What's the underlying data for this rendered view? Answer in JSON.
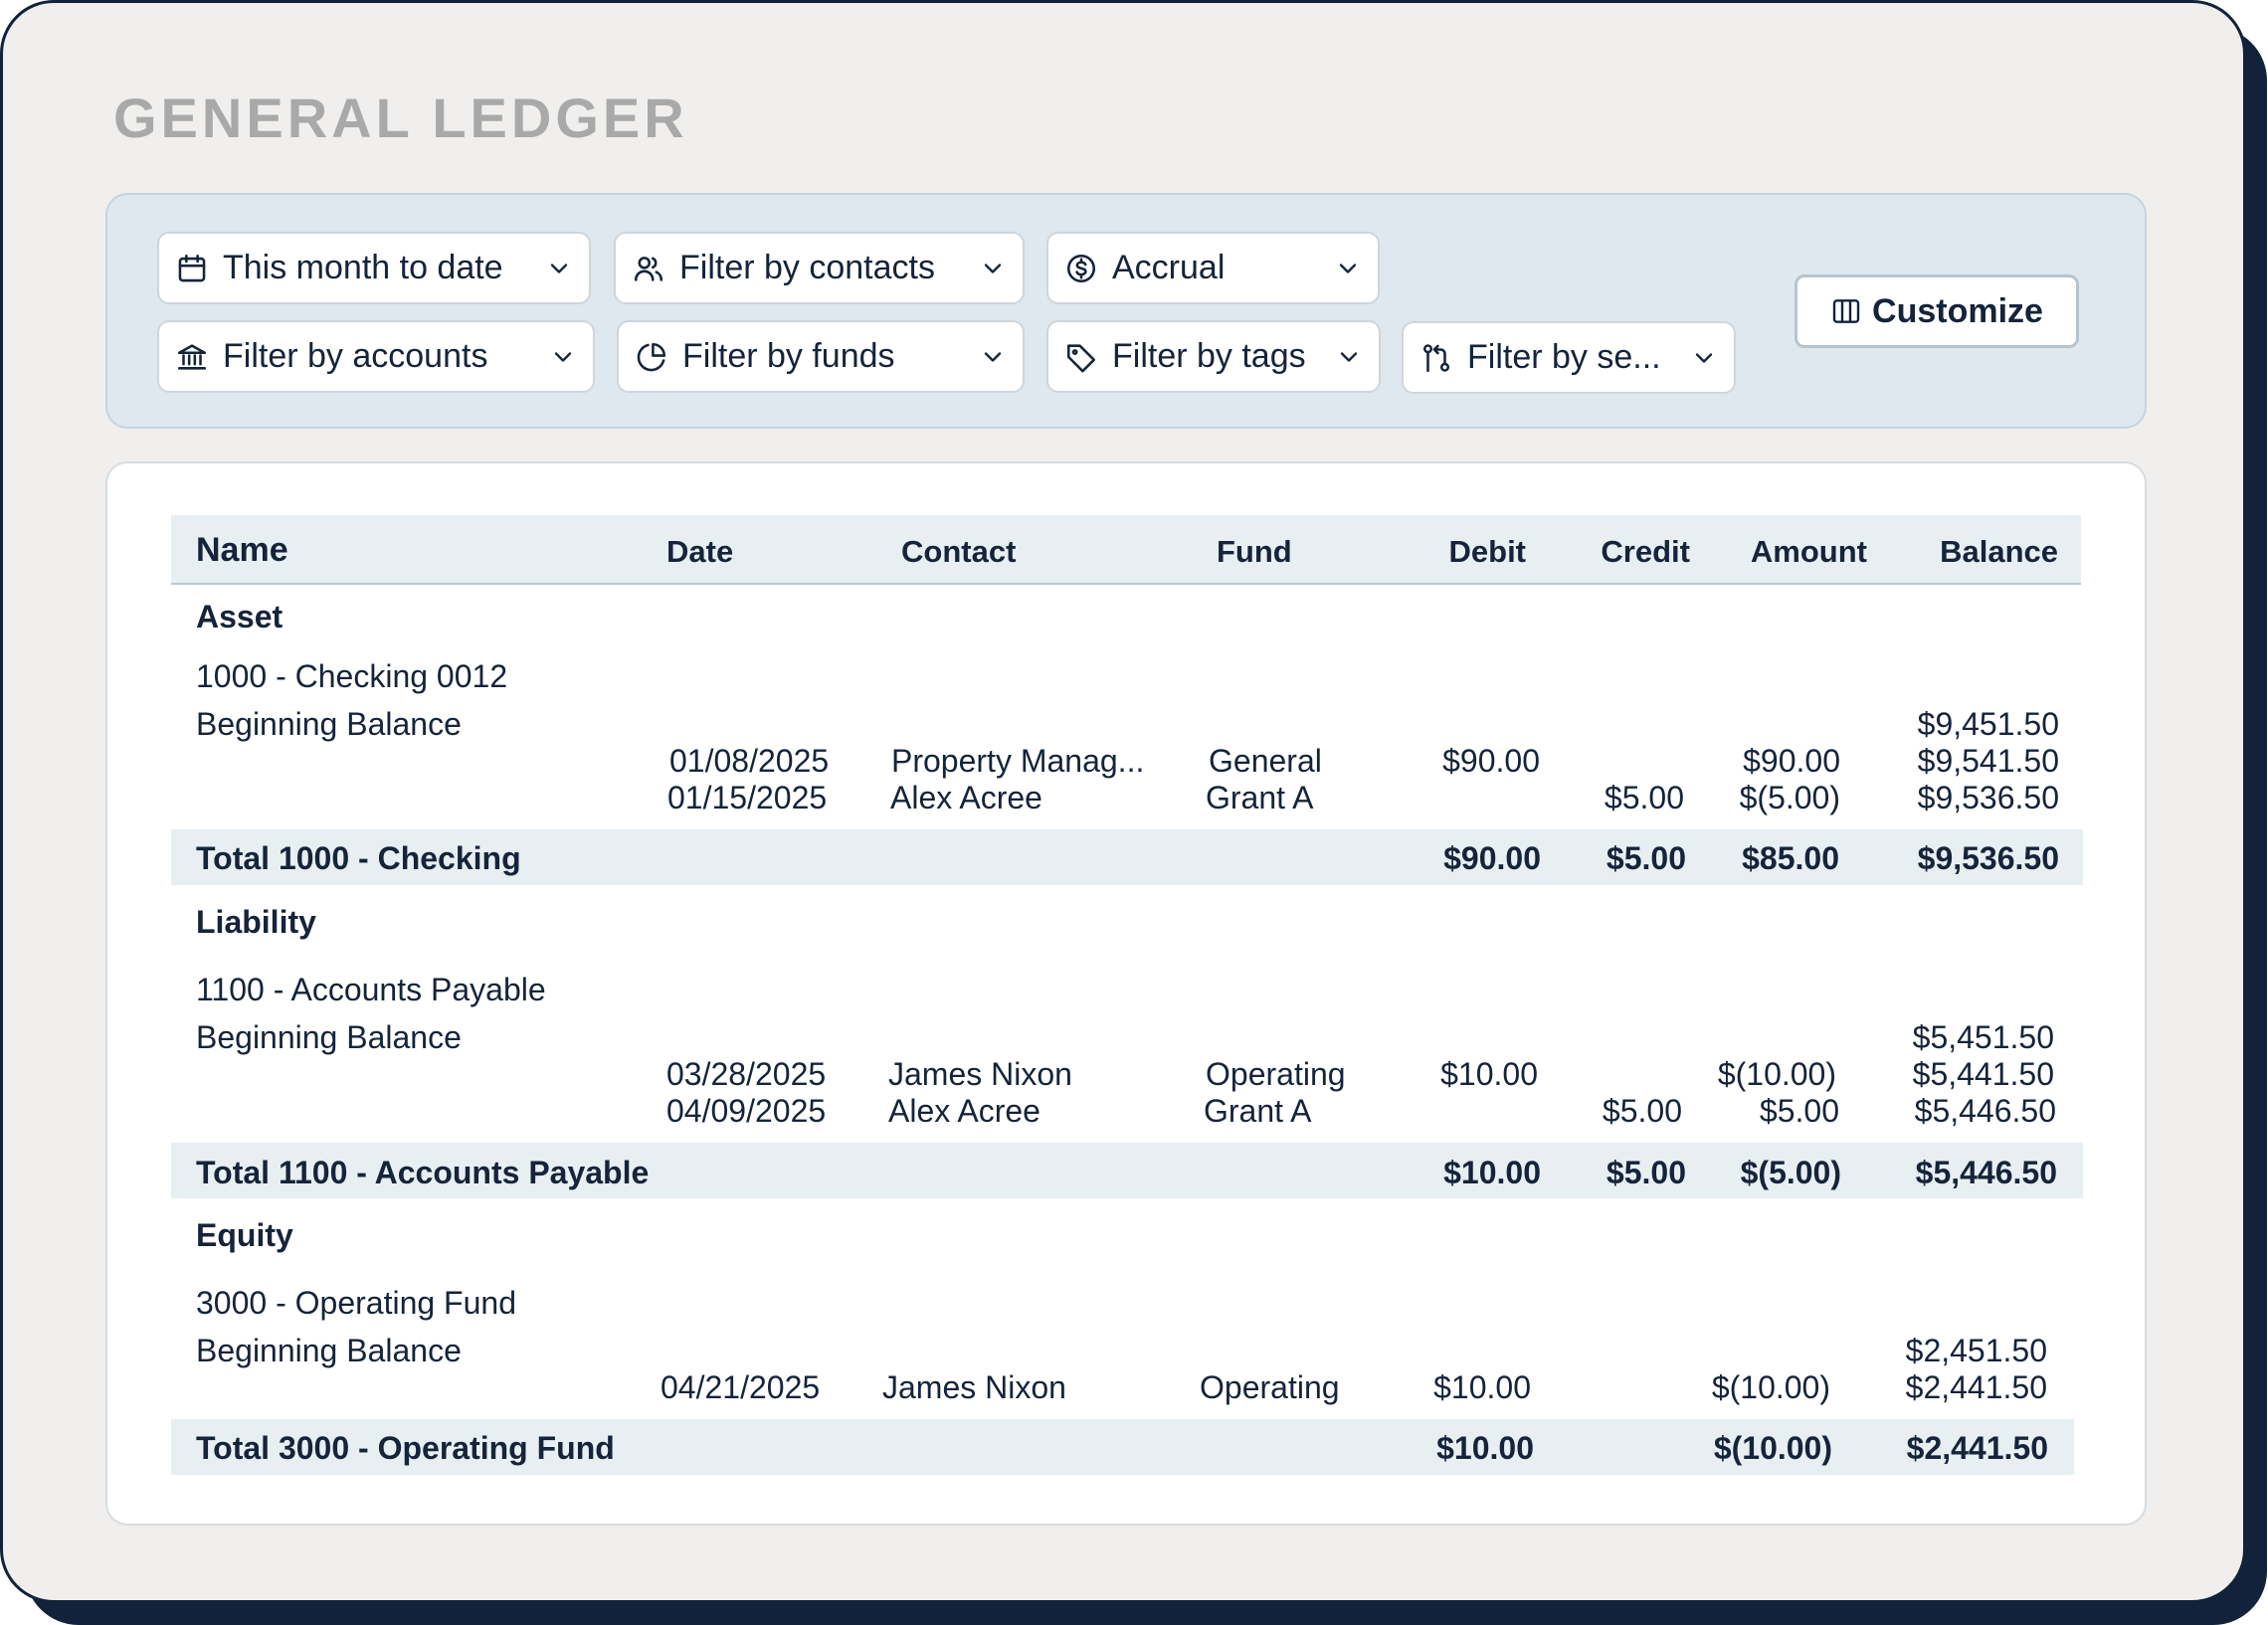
{
  "title": "GENERAL LEDGER",
  "filters": {
    "date_range": "This month to date",
    "contacts": "Filter by contacts",
    "basis": "Accrual",
    "accounts": "Filter by accounts",
    "funds": "Filter by funds",
    "tags": "Filter by tags",
    "segments": "Filter by se..."
  },
  "customize_label": "Customize",
  "table": {
    "headers": {
      "name": "Name",
      "date": "Date",
      "contact": "Contact",
      "fund": "Fund",
      "debit": "Debit",
      "credit": "Credit",
      "amount": "Amount",
      "balance": "Balance"
    },
    "sections": [
      {
        "type": "Asset",
        "account": "1000 - Checking 0012",
        "beginning_label": "Beginning Balance",
        "beginning_balance": "$9,451.50",
        "rows": [
          {
            "date": "01/08/2025",
            "contact": "Property Manag...",
            "fund": "General",
            "debit": "$90.00",
            "credit": "",
            "amount": "$90.00",
            "balance": "$9,541.50"
          },
          {
            "date": "01/15/2025",
            "contact": "Alex Acree",
            "fund": "Grant A",
            "debit": "",
            "credit": "$5.00",
            "amount": "$(5.00)",
            "balance": "$9,536.50"
          }
        ],
        "total": {
          "label": "Total 1000 - Checking",
          "debit": "$90.00",
          "credit": "$5.00",
          "amount": "$85.00",
          "balance": "$9,536.50"
        }
      },
      {
        "type": "Liability",
        "account": "1100 - Accounts Payable",
        "beginning_label": "Beginning Balance",
        "beginning_balance": "$5,451.50",
        "rows": [
          {
            "date": "03/28/2025",
            "contact": "James Nixon",
            "fund": "Operating",
            "debit": "$10.00",
            "credit": "",
            "amount": "$(10.00)",
            "balance": "$5,441.50"
          },
          {
            "date": "04/09/2025",
            "contact": "Alex Acree",
            "fund": "Grant A",
            "debit": "",
            "credit": "$5.00",
            "amount": "$5.00",
            "balance": "$5,446.50"
          }
        ],
        "total": {
          "label": "Total 1100 - Accounts Payable",
          "debit": "$10.00",
          "credit": "$5.00",
          "amount": "$(5.00)",
          "balance": "$5,446.50"
        }
      },
      {
        "type": "Equity",
        "account": "3000 - Operating Fund",
        "beginning_label": "Beginning Balance",
        "beginning_balance": "$2,451.50",
        "rows": [
          {
            "date": "04/21/2025",
            "contact": "James Nixon",
            "fund": "Operating",
            "debit": "$10.00",
            "credit": "",
            "amount": "$(10.00)",
            "balance": "$2,441.50"
          }
        ],
        "total": {
          "label": "Total 3000 - Operating Fund",
          "debit": "$10.00",
          "credit": "",
          "amount": "$(10.00)",
          "balance": "$2,441.50"
        }
      }
    ]
  }
}
